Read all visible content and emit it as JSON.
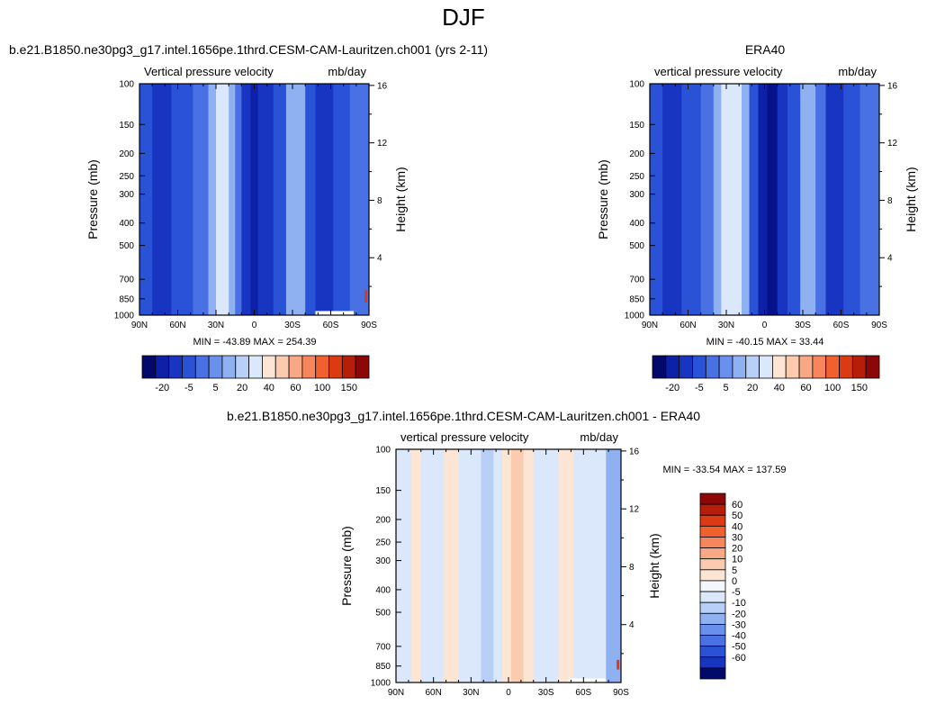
{
  "page": {
    "title": "DJF"
  },
  "colors": {
    "positive": [
      "#fde5d4",
      "#fbcbb0",
      "#f9a885",
      "#f7865c",
      "#f1602f",
      "#dc3a12",
      "#b71e09",
      "#8c0707"
    ],
    "negative": [
      "#dbe8fb",
      "#b8d0f7",
      "#8fb1f1",
      "#6990ec",
      "#4971e3",
      "#2a52d6",
      "#1835c2",
      "#0c21a8",
      "#061289",
      "#03086b"
    ]
  },
  "chart_data": [
    {
      "type": "heatmap",
      "name": "model",
      "title": "b.e21.B1850.ne30pg3_g17.intel.1656pe.1thrd.CESM-CAM-Lauritzen.ch001 (yrs 2-11)",
      "left_label": "Vertical pressure velocity",
      "right_label": "mb/day",
      "xlabel": "",
      "ylabel": "Pressure (mb)",
      "y2label": "Height (km)",
      "x_ticks": [
        "90N",
        "60N",
        "30N",
        "0",
        "30S",
        "60S",
        "90S"
      ],
      "x_range": [
        90,
        -90
      ],
      "y_ticks": [
        100,
        150,
        200,
        250,
        300,
        400,
        500,
        700,
        850,
        1000
      ],
      "y_range": [
        100,
        1000
      ],
      "y_scale": "log",
      "y2_ticks": [
        4,
        8,
        12,
        16
      ],
      "stats": "MIN = -43.89  MAX = 254.39",
      "colorbar": {
        "orientation": "horizontal",
        "labels": [
          "-20",
          "-5",
          "5",
          "20",
          "40",
          "60",
          "100",
          "150"
        ],
        "colors": [
          "#03086b",
          "#0c21a8",
          "#1835c2",
          "#2a52d6",
          "#4971e3",
          "#6990ec",
          "#8fb1f1",
          "#b8d0f7",
          "#dbe8fb",
          "#fde5d4",
          "#fbcbb0",
          "#f9a885",
          "#f7865c",
          "#f1602f",
          "#dc3a12",
          "#b71e09",
          "#8c0707"
        ]
      },
      "bands": [
        {
          "lat": [
            90,
            80
          ],
          "color": "#2a52d6"
        },
        {
          "lat": [
            80,
            65
          ],
          "color": "#1835c2"
        },
        {
          "lat": [
            65,
            48
          ],
          "color": "#2a52d6"
        },
        {
          "lat": [
            48,
            36
          ],
          "color": "#4971e3"
        },
        {
          "lat": [
            36,
            30
          ],
          "color": "#8fb1f1"
        },
        {
          "lat": [
            30,
            20
          ],
          "color": "#dbe8fb"
        },
        {
          "lat": [
            20,
            15
          ],
          "color": "#8fb1f1"
        },
        {
          "lat": [
            15,
            10
          ],
          "color": "#4971e3"
        },
        {
          "lat": [
            10,
            3
          ],
          "color": "#1835c2"
        },
        {
          "lat": [
            3,
            -3
          ],
          "color": "#0c21a8"
        },
        {
          "lat": [
            -3,
            -15
          ],
          "color": "#1835c2"
        },
        {
          "lat": [
            -15,
            -25
          ],
          "color": "#2a52d6"
        },
        {
          "lat": [
            -25,
            -40
          ],
          "color": "#8fb1f1"
        },
        {
          "lat": [
            -40,
            -48
          ],
          "color": "#2a52d6"
        },
        {
          "lat": [
            -48,
            -62
          ],
          "color": "#1835c2"
        },
        {
          "lat": [
            -62,
            -75
          ],
          "color": "#2a52d6"
        },
        {
          "lat": [
            -75,
            -90
          ],
          "color": "#4971e3"
        }
      ],
      "missing": {
        "lat": [
          -48,
          -78
        ],
        "p": [
          960,
          1000
        ]
      },
      "hotspot": {
        "lat": -88,
        "p": [
          780,
          880
        ]
      }
    },
    {
      "type": "heatmap",
      "name": "obs",
      "title": "ERA40",
      "left_label": "vertical pressure velocity",
      "right_label": "mb/day",
      "xlabel": "",
      "ylabel": "Pressure (mb)",
      "y2label": "Height (km)",
      "x_ticks": [
        "90N",
        "60N",
        "30N",
        "0",
        "30S",
        "60S",
        "90S"
      ],
      "x_range": [
        90,
        -90
      ],
      "y_ticks": [
        100,
        150,
        200,
        250,
        300,
        400,
        500,
        700,
        850,
        1000
      ],
      "y_range": [
        100,
        1000
      ],
      "y_scale": "log",
      "y2_ticks": [
        4,
        8,
        12,
        16
      ],
      "stats": "MIN = -40.15  MAX =  33.44",
      "colorbar": {
        "orientation": "horizontal",
        "labels": [
          "-20",
          "-5",
          "5",
          "20",
          "40",
          "60",
          "100",
          "150"
        ],
        "colors": [
          "#03086b",
          "#0c21a8",
          "#1835c2",
          "#2a52d6",
          "#4971e3",
          "#6990ec",
          "#8fb1f1",
          "#b8d0f7",
          "#dbe8fb",
          "#fde5d4",
          "#fbcbb0",
          "#f9a885",
          "#f7865c",
          "#f1602f",
          "#dc3a12",
          "#b71e09",
          "#8c0707"
        ]
      },
      "bands": [
        {
          "lat": [
            90,
            80
          ],
          "color": "#2a52d6"
        },
        {
          "lat": [
            80,
            65
          ],
          "color": "#1835c2"
        },
        {
          "lat": [
            65,
            50
          ],
          "color": "#2a52d6"
        },
        {
          "lat": [
            50,
            40
          ],
          "color": "#4971e3"
        },
        {
          "lat": [
            40,
            34
          ],
          "color": "#8fb1f1"
        },
        {
          "lat": [
            34,
            18
          ],
          "color": "#dbe8fb"
        },
        {
          "lat": [
            18,
            12
          ],
          "color": "#8fb1f1"
        },
        {
          "lat": [
            12,
            5
          ],
          "color": "#2a52d6"
        },
        {
          "lat": [
            5,
            -2
          ],
          "color": "#0c21a8"
        },
        {
          "lat": [
            -2,
            -10
          ],
          "color": "#061289"
        },
        {
          "lat": [
            -10,
            -18
          ],
          "color": "#1835c2"
        },
        {
          "lat": [
            -18,
            -28
          ],
          "color": "#2a52d6"
        },
        {
          "lat": [
            -28,
            -40
          ],
          "color": "#8fb1f1"
        },
        {
          "lat": [
            -40,
            -48
          ],
          "color": "#4971e3"
        },
        {
          "lat": [
            -48,
            -62
          ],
          "color": "#1835c2"
        },
        {
          "lat": [
            -62,
            -75
          ],
          "color": "#2a52d6"
        },
        {
          "lat": [
            -75,
            -90
          ],
          "color": "#4971e3"
        }
      ],
      "missing": null,
      "hotspot": null
    },
    {
      "type": "heatmap",
      "name": "diff",
      "title": "b.e21.B1850.ne30pg3_g17.intel.1656pe.1thrd.CESM-CAM-Lauritzen.ch001 - ERA40",
      "left_label": "vertical pressure velocity",
      "right_label": "mb/day",
      "xlabel": "",
      "ylabel": "Pressure (mb)",
      "y2label": "Height (km)",
      "x_ticks": [
        "90N",
        "60N",
        "30N",
        "0",
        "30S",
        "60S",
        "90S"
      ],
      "x_range": [
        90,
        -90
      ],
      "y_ticks": [
        100,
        150,
        200,
        250,
        300,
        400,
        500,
        700,
        850,
        1000
      ],
      "y_range": [
        100,
        1000
      ],
      "y_scale": "log",
      "y2_ticks": [
        4,
        8,
        12,
        16
      ],
      "stats": "MIN = -33.54  MAX = 137.59",
      "colorbar": {
        "orientation": "vertical",
        "labels": [
          "60",
          "50",
          "40",
          "30",
          "20",
          "10",
          "5",
          "0",
          "-5",
          "-10",
          "-20",
          "-30",
          "-40",
          "-50",
          "-60"
        ],
        "colors": [
          "#8c0707",
          "#b71e09",
          "#dc3a12",
          "#f1602f",
          "#f7865c",
          "#f9a885",
          "#fbcbb0",
          "#fde5d4",
          "#f2f6fd",
          "#dbe8fb",
          "#b8d0f7",
          "#8fb1f1",
          "#6990ec",
          "#4971e3",
          "#2a52d6",
          "#1835c2",
          "#03086b"
        ]
      },
      "bands": [
        {
          "lat": [
            90,
            78
          ],
          "color": "#dbe8fb"
        },
        {
          "lat": [
            78,
            70
          ],
          "color": "#fde5d4"
        },
        {
          "lat": [
            70,
            52
          ],
          "color": "#dbe8fb"
        },
        {
          "lat": [
            52,
            40
          ],
          "color": "#fde5d4"
        },
        {
          "lat": [
            40,
            22
          ],
          "color": "#dbe8fb"
        },
        {
          "lat": [
            22,
            12
          ],
          "color": "#b8d0f7"
        },
        {
          "lat": [
            12,
            5
          ],
          "color": "#dbe8fb"
        },
        {
          "lat": [
            5,
            -2
          ],
          "color": "#fde5d4"
        },
        {
          "lat": [
            -2,
            -12
          ],
          "color": "#fbcbb0"
        },
        {
          "lat": [
            -12,
            -20
          ],
          "color": "#fde5d4"
        },
        {
          "lat": [
            -20,
            -40
          ],
          "color": "#dbe8fb"
        },
        {
          "lat": [
            -40,
            -52
          ],
          "color": "#fde5d4"
        },
        {
          "lat": [
            -52,
            -78
          ],
          "color": "#dbe8fb"
        },
        {
          "lat": [
            -78,
            -90
          ],
          "color": "#8fb1f1"
        }
      ],
      "missing": {
        "lat": [
          -48,
          -78
        ],
        "p": [
          960,
          1000
        ]
      },
      "hotspot": {
        "lat": -88,
        "p": [
          800,
          880
        ]
      }
    }
  ]
}
